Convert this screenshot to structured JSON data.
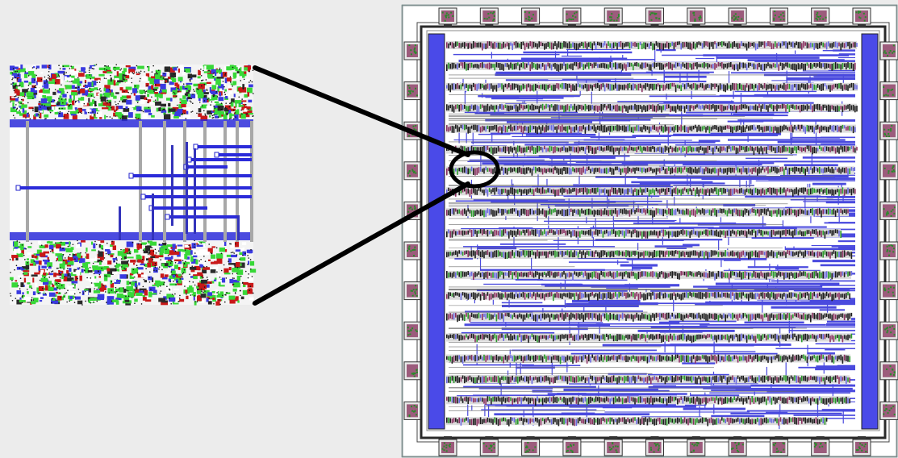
{
  "figure": {
    "description_visible_text": "",
    "palette": {
      "background": "#ececec",
      "die_fill": "#ffffff",
      "die_frame": "#7f8f8f",
      "pad_fill": "#e8e8e8",
      "pad_core": "#9c5c7c",
      "power_ring": "#4a4ae8",
      "cell_row_dark": "#1c1c1c",
      "route_blue": "#2b2bd9",
      "magnifier": "#000000",
      "zoom_green": "#38d838",
      "zoom_red": "#c81818",
      "zoom_grey": "#a8a8a8"
    },
    "die": {
      "pads_top": 11,
      "pads_bottom": 11,
      "pads_left": 10,
      "pads_right": 10,
      "cell_rows": 19
    },
    "zoom_inset": {
      "subject": "magnified-region-of-routing-channel",
      "upper_cell_row": true,
      "lower_cell_row": true
    }
  }
}
